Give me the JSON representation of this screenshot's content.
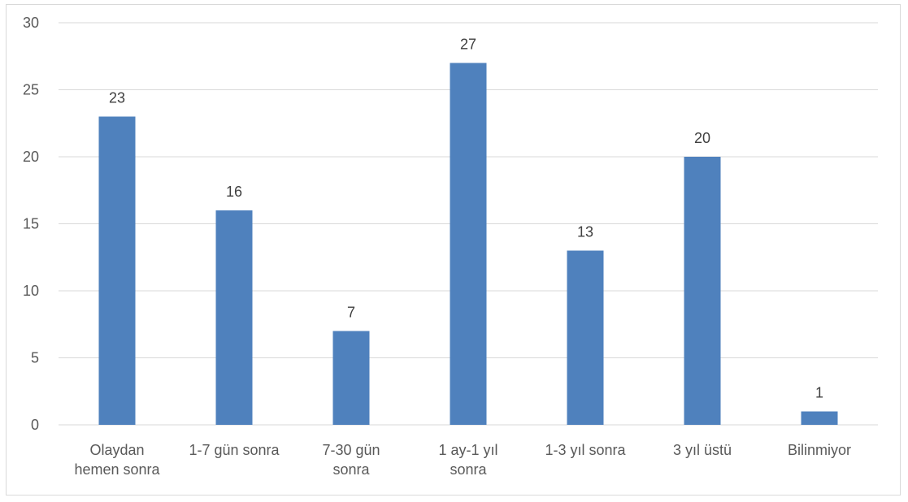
{
  "chart_data": {
    "type": "bar",
    "title": "",
    "xlabel": "",
    "ylabel": "",
    "categories": [
      [
        "Olaydan",
        "hemen sonra"
      ],
      [
        "1-7 gün sonra"
      ],
      [
        "7-30 gün",
        "sonra"
      ],
      [
        "1 ay-1 yıl",
        "sonra"
      ],
      [
        "1-3 yıl sonra"
      ],
      [
        "3 yıl üstü"
      ],
      [
        "Bilinmiyor"
      ]
    ],
    "values": [
      23,
      16,
      7,
      27,
      13,
      20,
      1
    ],
    "ylim": [
      0,
      30
    ],
    "yticks": [
      0,
      5,
      10,
      15,
      20,
      25,
      30
    ],
    "grid": true,
    "legend": "none",
    "bar_color": "#4f81bd",
    "grid_color": "#d9d9d9"
  }
}
